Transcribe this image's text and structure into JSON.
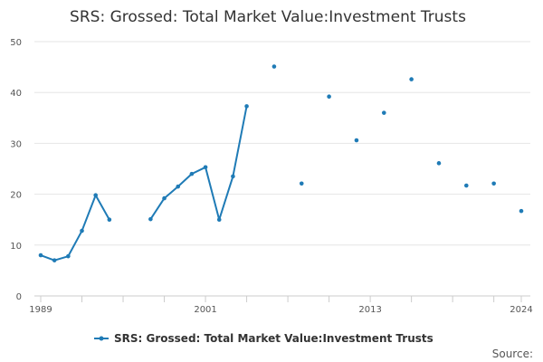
{
  "chart_data": {
    "type": "line",
    "title": "SRS: Grossed: Total Market Value:Investment Trusts",
    "xlabel": "",
    "ylabel": "",
    "xlim": [
      1989,
      2024
    ],
    "ylim": [
      0,
      50
    ],
    "y_ticks": [
      0,
      10,
      20,
      30,
      40,
      50
    ],
    "x_tick_labels": [
      "1989",
      "2001",
      "2013",
      "2024"
    ],
    "grid": "horizontal",
    "legend_position": "bottom",
    "source_label": "Source:",
    "series": [
      {
        "name": "SRS: Grossed: Total Market Value:Investment Trusts",
        "color": "#1f7bb6",
        "points": [
          [
            1989,
            8.0
          ],
          [
            1990,
            7.0
          ],
          [
            1991,
            7.8
          ],
          [
            1992,
            12.8
          ],
          [
            1993,
            19.8
          ],
          [
            1994,
            15.0
          ],
          [
            1995,
            null
          ],
          [
            1997,
            15.1
          ],
          [
            1998,
            19.2
          ],
          [
            1999,
            21.5
          ],
          [
            2000,
            24.0
          ],
          [
            2001,
            25.3
          ],
          [
            2002,
            15.0
          ],
          [
            2003,
            23.5
          ],
          [
            2004,
            37.3
          ],
          [
            2005,
            null
          ],
          [
            2006,
            45.1
          ],
          [
            2007,
            null
          ],
          [
            2008,
            22.1
          ],
          [
            2009,
            null
          ],
          [
            2010,
            39.2
          ],
          [
            2011,
            null
          ],
          [
            2012,
            30.6
          ],
          [
            2013,
            null
          ],
          [
            2014,
            36.0
          ],
          [
            2015,
            null
          ],
          [
            2016,
            42.6
          ],
          [
            2017,
            null
          ],
          [
            2018,
            26.1
          ],
          [
            2019,
            null
          ],
          [
            2020,
            21.7
          ],
          [
            2021,
            null
          ],
          [
            2022,
            22.1
          ],
          [
            2023,
            null
          ],
          [
            2024,
            16.7
          ]
        ]
      }
    ]
  }
}
